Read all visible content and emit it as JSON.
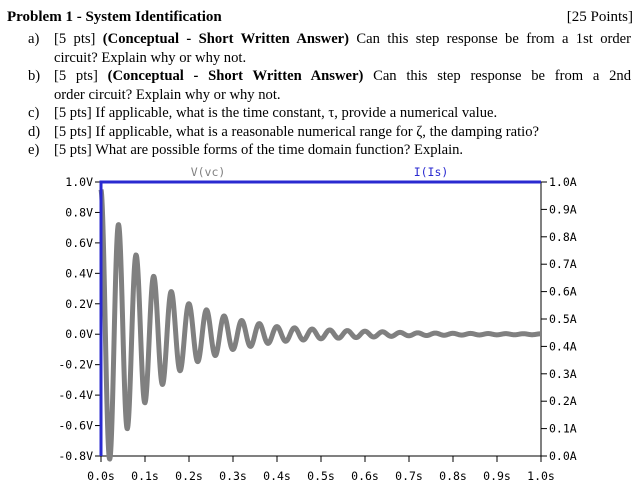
{
  "problem": {
    "title": "Problem 1 - System Identification",
    "points": "[25 Points]",
    "questions": [
      {
        "label": "a)",
        "pts": "[5 pts]",
        "bold": "(Conceptual - Short Written Answer)",
        "line1": "Can this step response be from a 1st order",
        "line2": "circuit? Explain why or why not."
      },
      {
        "label": "b)",
        "pts": "[5 pts]",
        "bold": "(Conceptual - Short Written Answer)",
        "line1": "Can this step response be from a 2nd",
        "line2": "order circuit? Explain why or why not."
      },
      {
        "label": "c)",
        "text": "[5 pts] If applicable, what is the time constant, τ, provide a numerical value."
      },
      {
        "label": "d)",
        "text": "[5 pts] If applicable, what is a reasonable numerical range for ζ, the damping ratio?"
      },
      {
        "label": "e)",
        "text": "[5 pts] What are possible forms of the time domain function? Explain."
      }
    ]
  },
  "chart_data": {
    "type": "line",
    "series": [
      {
        "name": "V(vc)",
        "color": "#808080",
        "description_of_trace": "damped oscillation"
      },
      {
        "name": "I(Is)",
        "color": "#2a2ad0"
      }
    ],
    "voltage_trace": {
      "x": [
        0.0,
        0.02,
        0.04,
        0.06,
        0.08,
        0.1,
        0.12,
        0.14,
        0.16,
        0.18,
        0.2,
        0.3,
        0.4,
        0.5,
        0.6,
        0.7,
        0.8,
        0.9,
        1.0
      ],
      "amplitude_envelope": [
        0.95,
        0.82,
        0.72,
        0.62,
        0.52,
        0.45,
        0.38,
        0.33,
        0.28,
        0.24,
        0.2,
        0.1,
        0.05,
        0.03,
        0.02,
        0.01,
        0.006,
        0.004,
        0.003
      ],
      "oscillation_period_s": 0.04
    },
    "current_trace": {
      "x": [
        0.0,
        1.0
      ],
      "y": [
        1.0,
        1.0
      ]
    },
    "left_axis": {
      "ticks": [
        "1.0V",
        "0.8V",
        "0.6V",
        "0.4V",
        "0.2V",
        "0.0V",
        "-0.2V",
        "-0.4V",
        "-0.6V",
        "-0.8V"
      ],
      "ylim": [
        -0.8,
        1.0
      ]
    },
    "right_axis": {
      "ticks": [
        "1.0A",
        "0.9A",
        "0.8A",
        "0.7A",
        "0.6A",
        "0.5A",
        "0.4A",
        "0.3A",
        "0.2A",
        "0.1A",
        "0.0A"
      ],
      "ylim": [
        0.0,
        1.0
      ]
    },
    "x_axis": {
      "ticks": [
        "0.0s",
        "0.1s",
        "0.2s",
        "0.3s",
        "0.4s",
        "0.5s",
        "0.6s",
        "0.7s",
        "0.8s",
        "0.9s",
        "1.0s"
      ],
      "xlim": [
        0.0,
        1.0
      ]
    },
    "grid": false
  }
}
